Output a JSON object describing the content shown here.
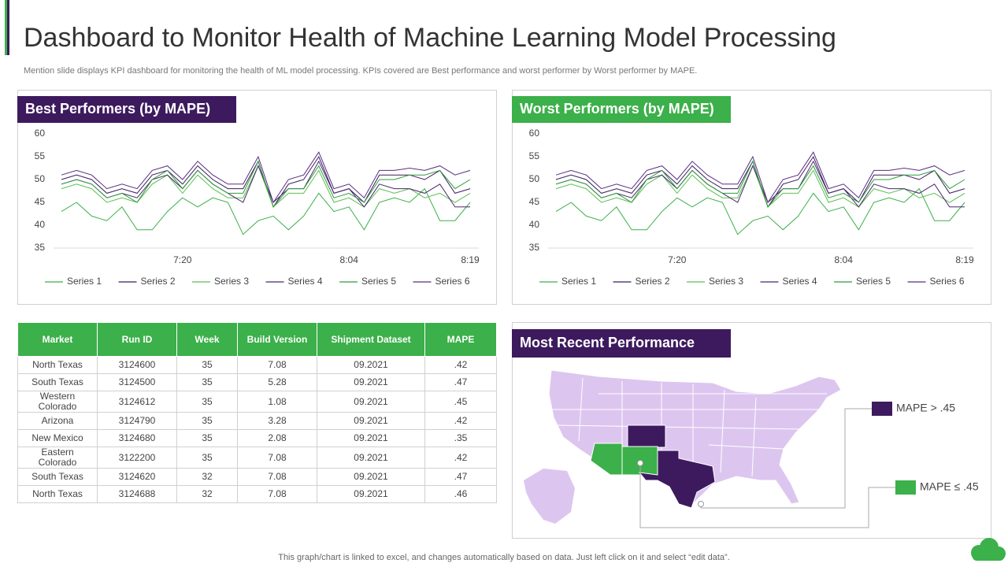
{
  "title": "Dashboard to Monitor Health of Machine Learning Model Processing",
  "subtitle": "Mention slide displays KPI dashboard for monitoring the health of ML model processing. KPIs covered are Best performance and worst performer by Worst performer by MAPE.",
  "chart_data": [
    {
      "type": "line",
      "title": "Best Performers (by MAPE)",
      "categories": [
        null,
        null,
        null,
        null,
        null,
        null,
        null,
        null,
        "7:20",
        null,
        null,
        null,
        null,
        null,
        null,
        null,
        null,
        null,
        null,
        "8:04",
        null,
        null,
        null,
        null,
        null,
        null,
        null,
        "8:19"
      ],
      "ylim": [
        35,
        60
      ],
      "yticks": [
        35,
        40,
        45,
        50,
        55,
        60
      ],
      "series": [
        {
          "name": "Series 1",
          "color": "#3cb04a",
          "values": [
            43,
            45,
            42,
            41,
            44,
            39,
            39,
            43,
            46,
            44,
            46,
            45,
            38,
            41,
            42,
            39,
            42,
            47,
            43,
            44,
            39,
            45,
            46,
            45,
            48,
            41,
            41,
            45
          ]
        },
        {
          "name": "Series 2",
          "color": "#3d1a5e",
          "values": [
            50,
            51,
            50,
            47,
            48,
            47,
            51,
            52,
            49,
            53,
            50,
            48,
            48,
            54,
            44,
            49,
            50,
            55,
            47,
            48,
            45,
            51,
            51,
            51,
            50,
            52,
            47,
            48
          ]
        },
        {
          "name": "Series 3",
          "color": "#5cbf4f",
          "values": [
            48,
            49,
            48,
            45,
            46,
            45,
            49,
            51,
            47,
            51,
            48,
            46,
            46,
            53,
            44,
            47,
            47,
            52,
            45,
            46,
            44,
            48,
            47,
            48,
            46,
            47,
            45,
            47
          ]
        },
        {
          "name": "Series 4",
          "color": "#4b2573",
          "values": [
            49,
            50,
            49,
            46,
            47,
            46,
            50,
            51,
            48,
            52,
            49,
            47,
            45,
            53,
            45,
            48,
            48,
            54,
            47,
            48,
            44,
            49,
            48,
            48,
            47,
            49,
            44,
            44
          ]
        },
        {
          "name": "Series 5",
          "color": "#2e9e3c",
          "values": [
            49,
            50,
            49,
            46,
            47,
            45,
            50,
            52,
            48,
            52,
            49,
            47,
            47,
            54,
            44,
            48,
            48,
            53,
            46,
            47,
            45,
            50,
            50,
            51,
            51,
            52,
            48,
            50
          ]
        },
        {
          "name": "Series 6",
          "color": "#5a2d82",
          "values": [
            51,
            52,
            51,
            48,
            49,
            48,
            52,
            53,
            50,
            54,
            51,
            49,
            49,
            55,
            45,
            50,
            51,
            56,
            48,
            49,
            46,
            52,
            52,
            52.5,
            52,
            53,
            51,
            52
          ]
        }
      ]
    },
    {
      "type": "line",
      "title": "Worst Performers (by MAPE)",
      "categories": [
        null,
        null,
        null,
        null,
        null,
        null,
        null,
        null,
        "7:20",
        null,
        null,
        null,
        null,
        null,
        null,
        null,
        null,
        null,
        null,
        "8:04",
        null,
        null,
        null,
        null,
        null,
        null,
        null,
        "8:19"
      ],
      "ylim": [
        35,
        60
      ],
      "yticks": [
        35,
        40,
        45,
        50,
        55,
        60
      ],
      "series": [
        {
          "name": "Series 1",
          "color": "#3cb04a",
          "values": [
            43,
            45,
            42,
            41,
            44,
            39,
            39,
            43,
            46,
            44,
            46,
            45,
            38,
            41,
            42,
            39,
            42,
            47,
            43,
            44,
            39,
            45,
            46,
            45,
            48,
            41,
            41,
            45
          ]
        },
        {
          "name": "Series 2",
          "color": "#3d1a5e",
          "values": [
            50,
            51,
            50,
            47,
            48,
            47,
            51,
            52,
            49,
            53,
            50,
            48,
            48,
            54,
            44,
            49,
            50,
            55,
            47,
            48,
            45,
            51,
            51,
            51,
            50,
            52,
            47,
            48
          ]
        },
        {
          "name": "Series 3",
          "color": "#5cbf4f",
          "values": [
            48,
            49,
            48,
            45,
            46,
            45,
            49,
            51,
            47,
            51,
            48,
            46,
            46,
            53,
            44,
            47,
            47,
            52,
            45,
            46,
            44,
            48,
            47,
            48,
            46,
            47,
            45,
            47
          ]
        },
        {
          "name": "Series 4",
          "color": "#4b2573",
          "values": [
            49,
            50,
            49,
            46,
            47,
            46,
            50,
            51,
            48,
            52,
            49,
            47,
            45,
            53,
            45,
            48,
            48,
            54,
            47,
            48,
            44,
            49,
            48,
            48,
            47,
            49,
            44,
            44
          ]
        },
        {
          "name": "Series 5",
          "color": "#2e9e3c",
          "values": [
            49,
            50,
            49,
            46,
            47,
            45,
            50,
            52,
            48,
            52,
            49,
            47,
            47,
            54,
            44,
            48,
            48,
            53,
            46,
            47,
            45,
            50,
            50,
            51,
            51,
            52,
            48,
            50
          ]
        },
        {
          "name": "Series 6",
          "color": "#5a2d82",
          "values": [
            51,
            52,
            51,
            48,
            49,
            48,
            52,
            53,
            50,
            54,
            51,
            49,
            49,
            55,
            45,
            50,
            51,
            56,
            48,
            49,
            46,
            52,
            52,
            52.5,
            52,
            53,
            51,
            52
          ]
        }
      ]
    }
  ],
  "table": {
    "header": [
      "Market",
      "Run ID",
      "Week",
      "Build Version",
      "Shipment Dataset",
      "MAPE"
    ],
    "rows": [
      [
        "North Texas",
        "3124600",
        "35",
        "7.08",
        "09.2021",
        ".42"
      ],
      [
        "South Texas",
        "3124500",
        "35",
        "5.28",
        "09.2021",
        ".47"
      ],
      [
        "Western Colorado",
        "3124612",
        "35",
        "1.08",
        "09.2021",
        ".45"
      ],
      [
        "Arizona",
        "3124790",
        "35",
        "3.28",
        "09.2021",
        ".42"
      ],
      [
        "New Mexico",
        "3124680",
        "35",
        "2.08",
        "09.2021",
        ".35"
      ],
      [
        "Eastern Colorado",
        "3122200",
        "35",
        "7.08",
        "09.2021",
        ".42"
      ],
      [
        "South Texas",
        "3124620",
        "32",
        "7.08",
        "09.2021",
        ".47"
      ],
      [
        "North Texas",
        "3124688",
        "32",
        "7.08",
        "09.2021",
        ".46"
      ]
    ]
  },
  "map": {
    "title": "Most Recent Performance",
    "legend": [
      "MAPE > .45",
      "MAPE ≤ .45"
    ]
  },
  "footer": "This graph/chart is linked to excel, and changes automatically based on data. Just left click on it and select “edit data”."
}
